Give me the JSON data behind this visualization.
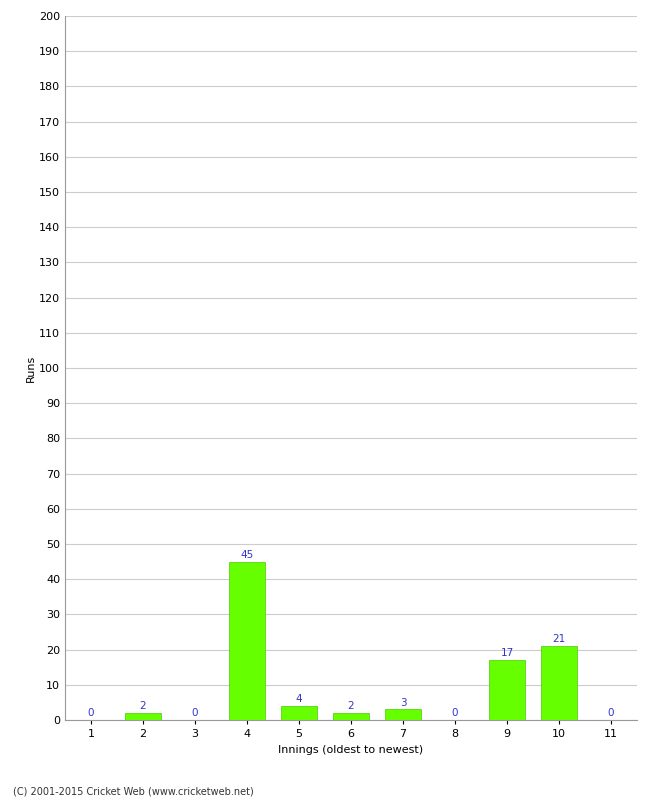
{
  "categories": [
    "1",
    "2",
    "3",
    "4",
    "5",
    "6",
    "7",
    "8",
    "9",
    "10",
    "11"
  ],
  "values": [
    0,
    2,
    0,
    45,
    4,
    2,
    3,
    0,
    17,
    21,
    0
  ],
  "bar_color": "#66ff00",
  "bar_edge_color": "#44cc00",
  "xlabel": "Innings (oldest to newest)",
  "ylabel": "Runs",
  "ylim": [
    0,
    200
  ],
  "yticks": [
    0,
    10,
    20,
    30,
    40,
    50,
    60,
    70,
    80,
    90,
    100,
    110,
    120,
    130,
    140,
    150,
    160,
    170,
    180,
    190,
    200
  ],
  "label_color": "#3333cc",
  "label_fontsize": 7.5,
  "axis_label_fontsize": 8,
  "tick_fontsize": 8,
  "background_color": "#ffffff",
  "grid_color": "#cccccc",
  "footer": "(C) 2001-2015 Cricket Web (www.cricketweb.net)"
}
